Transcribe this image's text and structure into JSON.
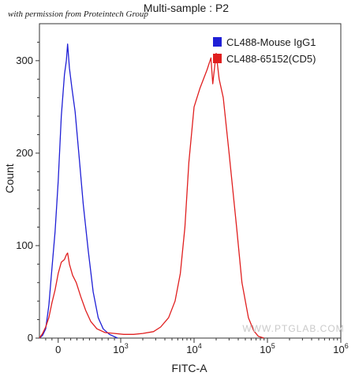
{
  "permission_note": "with permission from Proteintech Group",
  "watermark": "WWW.PTGLAB.COM",
  "chart_data": {
    "type": "line",
    "title": "Multi-sample : P2",
    "xlabel": "FITC-A",
    "ylabel": "Count",
    "x_scale": "biexponential (linear near 0, log above 10^3)",
    "xlim": [
      -300,
      1000000
    ],
    "ylim": [
      0,
      340
    ],
    "y_ticks": [
      "0",
      "100",
      "200",
      "300"
    ],
    "x_ticks": [
      {
        "value": 0,
        "label": "0"
      },
      {
        "value": 1000,
        "label": "10",
        "exp": "3"
      },
      {
        "value": 10000,
        "label": "10",
        "exp": "4"
      },
      {
        "value": 100000,
        "label": "10",
        "exp": "5"
      },
      {
        "value": 1000000,
        "label": "10",
        "exp": "6"
      }
    ],
    "legend_position": "top-right",
    "grid": false,
    "series": [
      {
        "name": "CL488-Mouse IgG1",
        "color": "#1f1fd6",
        "points": [
          [
            -300,
            0
          ],
          [
            -250,
            3
          ],
          [
            -200,
            10
          ],
          [
            -150,
            35
          ],
          [
            -100,
            75
          ],
          [
            -50,
            115
          ],
          [
            0,
            170
          ],
          [
            50,
            240
          ],
          [
            100,
            285
          ],
          [
            130,
            300
          ],
          [
            150,
            318
          ],
          [
            180,
            292
          ],
          [
            220,
            270
          ],
          [
            270,
            245
          ],
          [
            330,
            200
          ],
          [
            400,
            145
          ],
          [
            480,
            95
          ],
          [
            560,
            50
          ],
          [
            640,
            22
          ],
          [
            720,
            10
          ],
          [
            820,
            4
          ],
          [
            950,
            0
          ]
        ]
      },
      {
        "name": "CL488-65152(CD5)",
        "color": "#e01f1f",
        "points": [
          [
            -300,
            0
          ],
          [
            -250,
            5
          ],
          [
            -200,
            12
          ],
          [
            -150,
            22
          ],
          [
            -100,
            38
          ],
          [
            -50,
            52
          ],
          [
            0,
            70
          ],
          [
            50,
            82
          ],
          [
            100,
            85
          ],
          [
            130,
            90
          ],
          [
            150,
            92
          ],
          [
            180,
            80
          ],
          [
            230,
            68
          ],
          [
            290,
            60
          ],
          [
            360,
            45
          ],
          [
            440,
            30
          ],
          [
            520,
            18
          ],
          [
            620,
            10
          ],
          [
            750,
            6
          ],
          [
            900,
            5
          ],
          [
            1100,
            4
          ],
          [
            1500,
            4
          ],
          [
            2000,
            5
          ],
          [
            2800,
            7
          ],
          [
            3500,
            12
          ],
          [
            4500,
            22
          ],
          [
            5500,
            40
          ],
          [
            6500,
            70
          ],
          [
            7500,
            120
          ],
          [
            8500,
            190
          ],
          [
            10000,
            250
          ],
          [
            12000,
            270
          ],
          [
            15000,
            290
          ],
          [
            17000,
            303
          ],
          [
            18000,
            275
          ],
          [
            20000,
            308
          ],
          [
            22000,
            280
          ],
          [
            25000,
            260
          ],
          [
            30000,
            200
          ],
          [
            38000,
            120
          ],
          [
            45000,
            60
          ],
          [
            55000,
            22
          ],
          [
            65000,
            8
          ],
          [
            75000,
            2
          ],
          [
            90000,
            0
          ]
        ]
      }
    ]
  }
}
